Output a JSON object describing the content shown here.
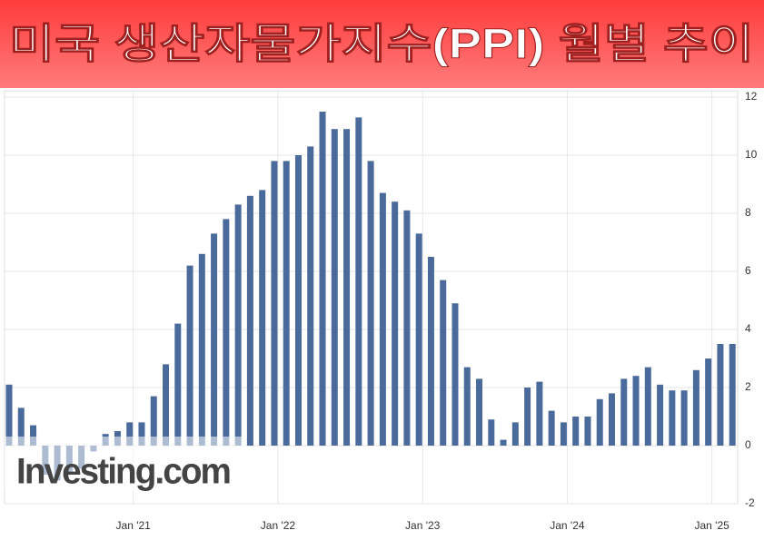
{
  "chart_data": {
    "type": "bar",
    "title": "미국 생산자물가지수(PPI) 월별 추이",
    "watermark": "Investing.com",
    "color": "#4a6a9c",
    "categories": [
      null,
      null,
      null,
      null,
      null,
      null,
      null,
      null,
      null,
      null,
      "Jan '21",
      null,
      null,
      null,
      null,
      null,
      null,
      null,
      null,
      null,
      null,
      null,
      "Jan '22",
      null,
      null,
      null,
      null,
      null,
      null,
      null,
      null,
      null,
      null,
      null,
      "Jan '23",
      null,
      null,
      null,
      null,
      null,
      null,
      null,
      null,
      null,
      null,
      null,
      "Jan '24",
      null,
      null,
      null,
      null,
      null,
      null,
      null,
      null,
      null,
      null,
      null,
      "Jan '25",
      null,
      null
    ],
    "values": [
      2.1,
      1.3,
      0.7,
      -1.0,
      -1.2,
      -0.9,
      -0.8,
      -0.2,
      0.4,
      0.5,
      0.8,
      0.8,
      1.7,
      2.8,
      4.2,
      6.2,
      6.6,
      7.3,
      7.8,
      8.3,
      8.6,
      8.8,
      9.8,
      9.8,
      10.0,
      10.3,
      11.5,
      10.9,
      10.9,
      11.3,
      9.8,
      8.7,
      8.4,
      8.1,
      7.3,
      6.5,
      5.7,
      4.9,
      2.7,
      2.3,
      0.9,
      0.2,
      0.8,
      2.0,
      2.2,
      1.2,
      0.8,
      1.0,
      1.0,
      1.6,
      1.8,
      2.3,
      2.4,
      2.7,
      2.1,
      1.9,
      1.9,
      2.6,
      3.0,
      3.5,
      3.5
    ],
    "ylim": [
      -2,
      12
    ],
    "yticks": [
      -2,
      0,
      2,
      4,
      6,
      8,
      10,
      12
    ],
    "grid": true
  }
}
